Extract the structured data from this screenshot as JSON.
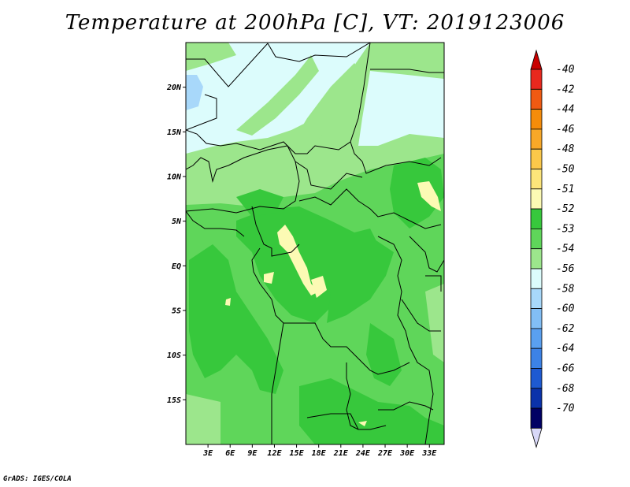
{
  "title": "Temperature at 200hPa [C], VT: 2019123006",
  "credit": "GrADS: IGES/COLA",
  "map": {
    "lon_range": [
      0,
      35
    ],
    "lat_range": [
      -20,
      25
    ],
    "lat_ticks": [
      {
        "lat": 20,
        "label": "20N"
      },
      {
        "lat": 15,
        "label": "15N"
      },
      {
        "lat": 10,
        "label": "10N"
      },
      {
        "lat": 5,
        "label": "5N"
      },
      {
        "lat": 0,
        "label": "EQ"
      },
      {
        "lat": -5,
        "label": "5S"
      },
      {
        "lat": -10,
        "label": "10S"
      },
      {
        "lat": -15,
        "label": "15S"
      }
    ],
    "lon_ticks": [
      {
        "lon": 3,
        "label": "3E"
      },
      {
        "lon": 6,
        "label": "6E"
      },
      {
        "lon": 9,
        "label": "9E"
      },
      {
        "lon": 12,
        "label": "12E"
      },
      {
        "lon": 15,
        "label": "15E"
      },
      {
        "lon": 18,
        "label": "18E"
      },
      {
        "lon": 21,
        "label": "21E"
      },
      {
        "lon": 24,
        "label": "24E"
      },
      {
        "lon": 27,
        "label": "27E"
      },
      {
        "lon": 30,
        "label": "30E"
      },
      {
        "lon": 33,
        "label": "33E"
      }
    ]
  },
  "colorbar": {
    "labels": [
      "-40",
      "-42",
      "-44",
      "-46",
      "-48",
      "-50",
      "-51",
      "-52",
      "-53",
      "-54",
      "-56",
      "-58",
      "-60",
      "-62",
      "-64",
      "-66",
      "-68",
      "-70"
    ],
    "colors": [
      "#e8281e",
      "#f05a12",
      "#f58c0a",
      "#f8a828",
      "#fbc84a",
      "#fde57a",
      "#fcfab4",
      "#37c83c",
      "#5fd65a",
      "#9ce68c",
      "#dcfcfc",
      "#a8d8fa",
      "#82bef5",
      "#5aa0f0",
      "#3c82e6",
      "#1e5ad2",
      "#0a32aa",
      "#000064"
    ],
    "top_arrow_color": "#c80000",
    "bottom_arrow_color": "#d8d8f8"
  }
}
